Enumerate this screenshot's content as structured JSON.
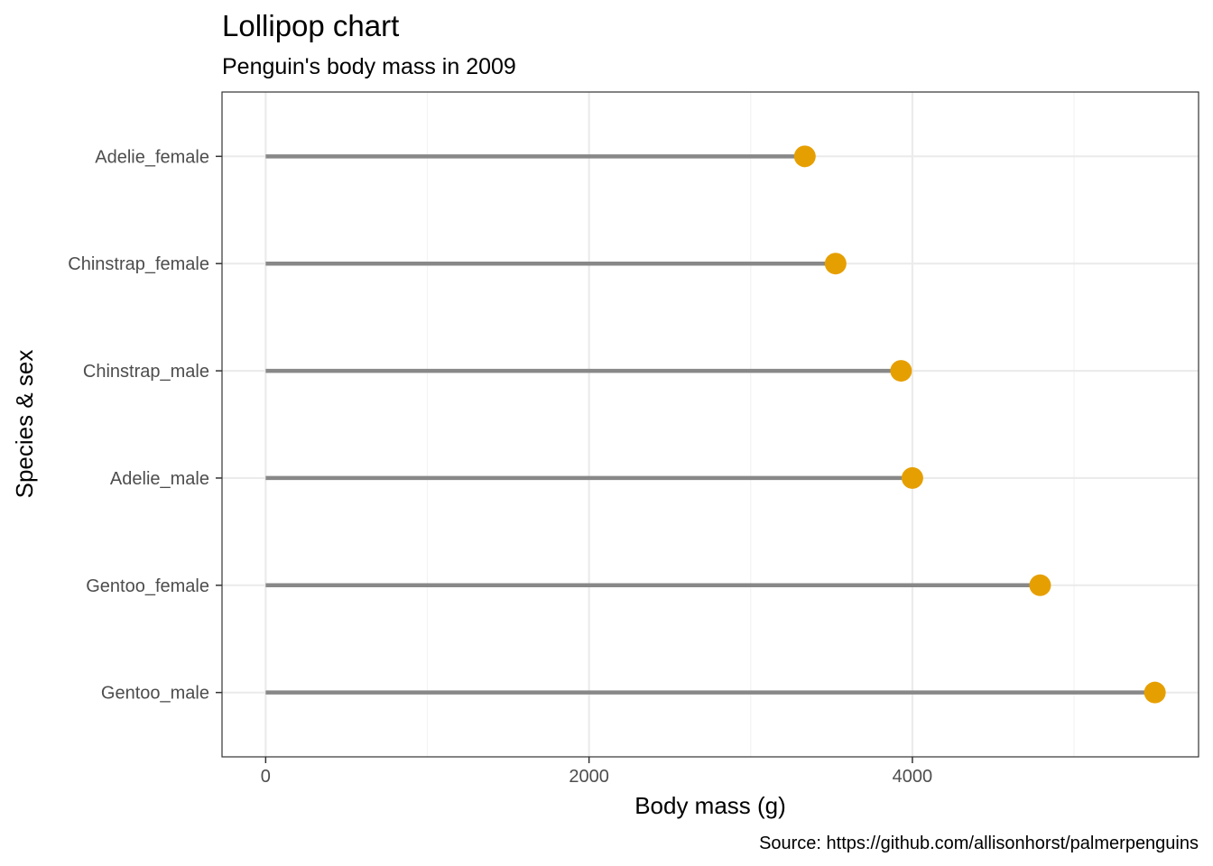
{
  "chart_data": {
    "type": "lollipop",
    "title": "Lollipop chart",
    "subtitle": "Penguin's body mass in 2009",
    "caption": "Source: https://github.com/allisonhorst/palmerpenguins",
    "xlabel": "Body mass (g)",
    "ylabel": "Species & sex",
    "xlim": [
      -270,
      5770
    ],
    "x_ticks": [
      0,
      2000,
      4000
    ],
    "x_tick_labels": [
      "0",
      "2000",
      "4000"
    ],
    "x_minor_ticks": [
      1000,
      3000,
      5000
    ],
    "categories": [
      "Adelie_female",
      "Chinstrap_female",
      "Chinstrap_male",
      "Adelie_male",
      "Gentoo_female",
      "Gentoo_male"
    ],
    "values": [
      3335,
      3525,
      3930,
      4000,
      4790,
      5500
    ],
    "grid": true,
    "colors": {
      "point": "#E69F00",
      "stem": "#888888",
      "grid_major": "#ebebeb",
      "grid_minor": "#f3f3f3",
      "panel_border": "#333333",
      "tick": "#333333"
    }
  }
}
